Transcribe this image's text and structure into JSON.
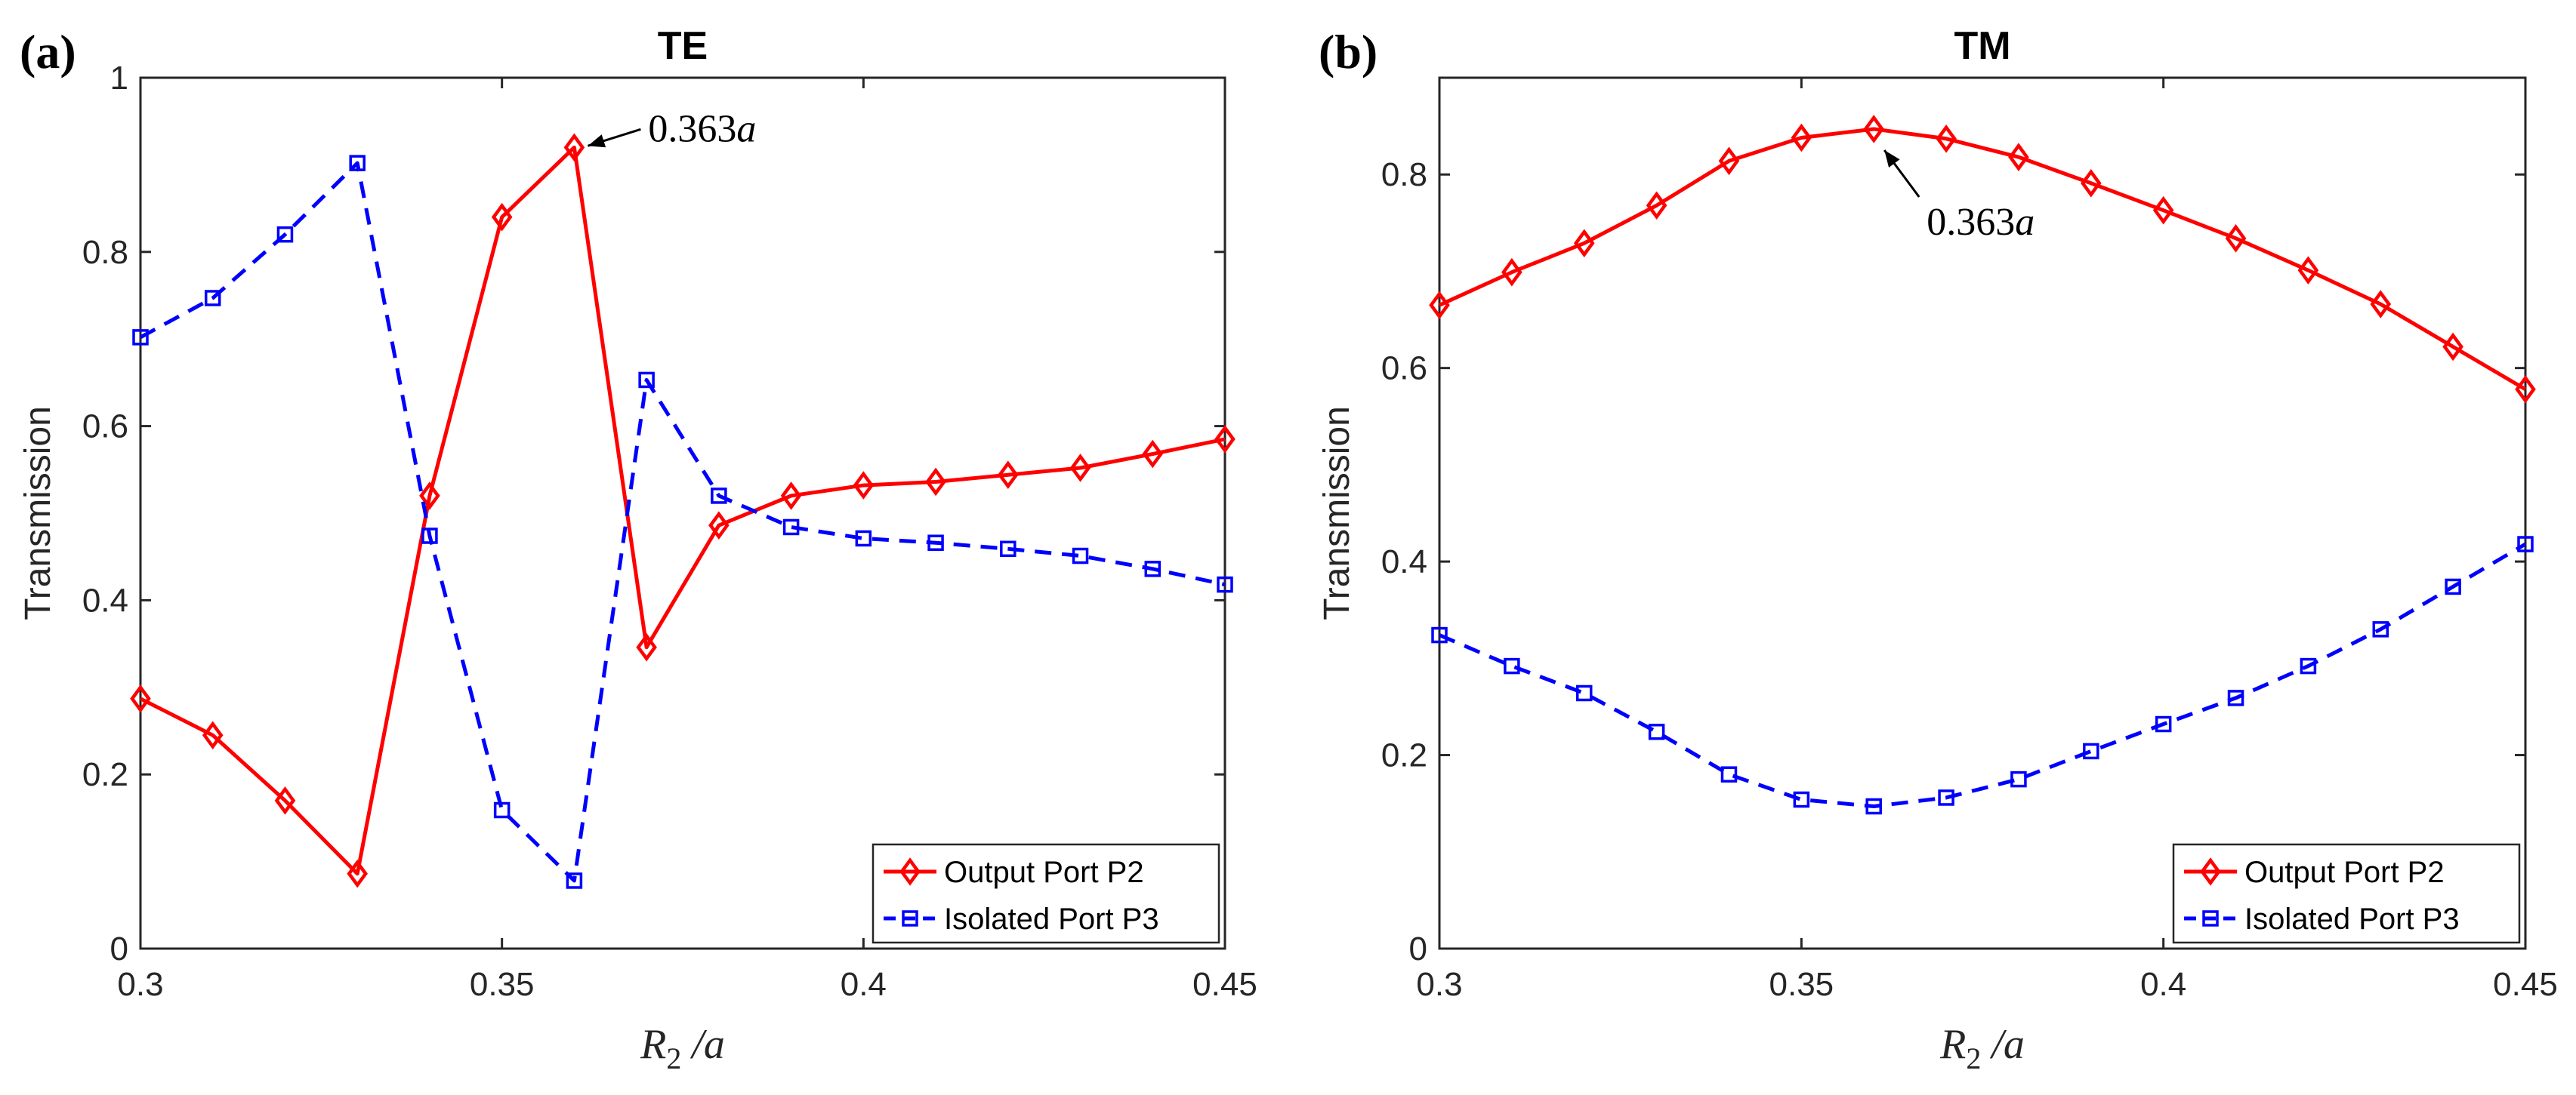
{
  "chart_data": [
    {
      "type": "line",
      "panel_label": "(a)",
      "title": "TE",
      "xlabel_main": "R",
      "xlabel_sub": "2",
      "xlabel_rest": " /a",
      "ylabel": "Transmission",
      "xlim": [
        0.3,
        0.45
      ],
      "ylim": [
        0,
        1
      ],
      "xticks": [
        0.3,
        0.35,
        0.4,
        0.45
      ],
      "xtick_labels": [
        "0.3",
        "0.35",
        "0.4",
        "0.45"
      ],
      "yticks": [
        0,
        0.2,
        0.4,
        0.6,
        0.8,
        1
      ],
      "ytick_labels": [
        "0",
        "0.2",
        "0.4",
        "0.6",
        "0.8",
        "1"
      ],
      "x": [
        0.3,
        0.31,
        0.32,
        0.33,
        0.34,
        0.35,
        0.36,
        0.37,
        0.38,
        0.39,
        0.4,
        0.41,
        0.42,
        0.43,
        0.44,
        0.45
      ],
      "series": [
        {
          "name": "Output Port P2",
          "color": "#ff0000",
          "marker": "diamond",
          "dash": "solid",
          "values": [
            0.287,
            0.245,
            0.17,
            0.086,
            0.52,
            0.84,
            0.92,
            0.346,
            0.486,
            0.52,
            0.532,
            0.536,
            0.544,
            0.552,
            0.568,
            0.585
          ]
        },
        {
          "name": "Isolated Port P3",
          "color": "#0000ff",
          "marker": "square",
          "dash": "dashed",
          "values": [
            0.702,
            0.747,
            0.82,
            0.902,
            0.474,
            0.159,
            0.078,
            0.653,
            0.52,
            0.484,
            0.471,
            0.466,
            0.459,
            0.451,
            0.436,
            0.418
          ]
        }
      ],
      "annotation": {
        "text_num": "0.363",
        "text_var": "a",
        "x": 0.36,
        "y": 0.92
      },
      "legend": "bottom-right"
    },
    {
      "type": "line",
      "panel_label": "(b)",
      "title": "TM",
      "xlabel_main": "R",
      "xlabel_sub": "2",
      "xlabel_rest": " /a",
      "ylabel": "Transmission",
      "xlim": [
        0.3,
        0.45
      ],
      "ylim": [
        0,
        0.9
      ],
      "xticks": [
        0.3,
        0.35,
        0.4,
        0.45
      ],
      "xtick_labels": [
        "0.3",
        "0.35",
        "0.4",
        "0.45"
      ],
      "yticks": [
        0,
        0.2,
        0.4,
        0.6,
        0.8
      ],
      "ytick_labels": [
        "0",
        "0.2",
        "0.4",
        "0.6",
        "0.8"
      ],
      "x": [
        0.3,
        0.31,
        0.32,
        0.33,
        0.34,
        0.35,
        0.36,
        0.37,
        0.38,
        0.39,
        0.4,
        0.41,
        0.42,
        0.43,
        0.44,
        0.45
      ],
      "series": [
        {
          "name": "Output Port P2",
          "color": "#ff0000",
          "marker": "diamond",
          "dash": "solid",
          "values": [
            0.665,
            0.699,
            0.729,
            0.768,
            0.814,
            0.838,
            0.847,
            0.837,
            0.818,
            0.791,
            0.763,
            0.734,
            0.701,
            0.666,
            0.622,
            0.578
          ]
        },
        {
          "name": "Isolated Port P3",
          "color": "#0000ff",
          "marker": "square",
          "dash": "dashed",
          "values": [
            0.324,
            0.292,
            0.264,
            0.224,
            0.18,
            0.154,
            0.147,
            0.156,
            0.175,
            0.204,
            0.232,
            0.259,
            0.292,
            0.33,
            0.374,
            0.418
          ]
        }
      ],
      "annotation": {
        "text_num": "0.363",
        "text_var": "a",
        "x": 0.36,
        "y": 0.847
      },
      "legend": "bottom-right"
    }
  ]
}
